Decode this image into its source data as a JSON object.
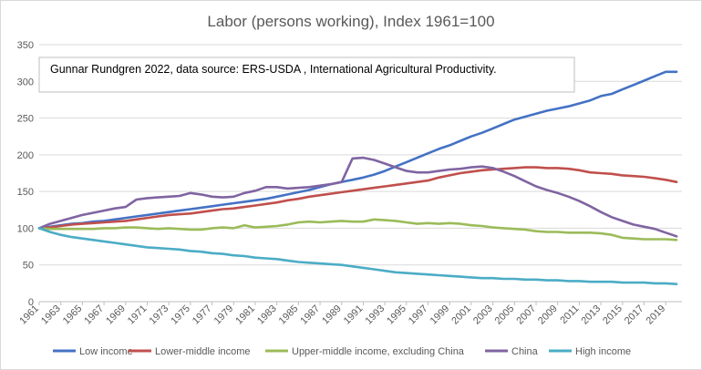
{
  "chart_data": {
    "type": "line",
    "title": "Labor (persons working), Index 1961=100",
    "annotation": "Gunnar Rundgren 2022,  data source: ERS-USDA , International Agricultural Productivity.",
    "xlabel": "",
    "ylabel": "",
    "ylim": [
      0,
      350
    ],
    "yticks": [
      0,
      50,
      100,
      150,
      200,
      250,
      300,
      350
    ],
    "xlim": [
      1961,
      2020
    ],
    "xticks": [
      1961,
      1963,
      1965,
      1967,
      1969,
      1971,
      1973,
      1975,
      1977,
      1979,
      1981,
      1983,
      1985,
      1987,
      1989,
      1991,
      1993,
      1995,
      1997,
      1999,
      2001,
      2003,
      2005,
      2007,
      2009,
      2011,
      2013,
      2015,
      2017,
      2019
    ],
    "grid": "horizontal",
    "legend_position": "bottom",
    "x": [
      1961,
      1962,
      1963,
      1964,
      1965,
      1966,
      1967,
      1968,
      1969,
      1970,
      1971,
      1972,
      1973,
      1974,
      1975,
      1976,
      1977,
      1978,
      1979,
      1980,
      1981,
      1982,
      1983,
      1984,
      1985,
      1986,
      1987,
      1988,
      1989,
      1990,
      1991,
      1992,
      1993,
      1994,
      1995,
      1996,
      1997,
      1998,
      1999,
      2000,
      2001,
      2002,
      2003,
      2004,
      2005,
      2006,
      2007,
      2008,
      2009,
      2010,
      2011,
      2012,
      2013,
      2014,
      2015,
      2016,
      2017,
      2018,
      2019,
      2020
    ],
    "series": [
      {
        "name": "Low income",
        "color": "#4472c4",
        "values": [
          100,
          102,
          104,
          106,
          107,
          109,
          110,
          112,
          114,
          116,
          118,
          120,
          122,
          124,
          126,
          128,
          130,
          132,
          134,
          136,
          138,
          140,
          143,
          146,
          149,
          152,
          156,
          160,
          163,
          166,
          169,
          173,
          178,
          184,
          190,
          196,
          202,
          208,
          213,
          219,
          225,
          230,
          236,
          242,
          248,
          252,
          256,
          260,
          263,
          266,
          270,
          274,
          280,
          283,
          289,
          295,
          301,
          307,
          313,
          313
        ]
      },
      {
        "name": "Lower-middle income",
        "color": "#c0504d",
        "values": [
          100,
          101,
          103,
          105,
          106,
          107,
          108,
          109,
          110,
          112,
          114,
          116,
          118,
          119,
          120,
          122,
          124,
          126,
          127,
          129,
          131,
          133,
          135,
          138,
          140,
          143,
          145,
          147,
          149,
          151,
          153,
          155,
          157,
          159,
          161,
          163,
          165,
          169,
          172,
          175,
          177,
          179,
          180,
          181,
          182,
          183,
          183,
          182,
          182,
          181,
          179,
          176,
          175,
          174,
          172,
          171,
          170,
          168,
          166,
          163
        ]
      },
      {
        "name": "Upper-middle income, excluding China",
        "color": "#9bbb59",
        "values": [
          100,
          99,
          99,
          99,
          99,
          99,
          100,
          100,
          101,
          101,
          100,
          99,
          100,
          99,
          98,
          98,
          100,
          101,
          100,
          104,
          101,
          102,
          103,
          105,
          108,
          109,
          108,
          109,
          110,
          109,
          109,
          112,
          111,
          110,
          108,
          106,
          107,
          106,
          107,
          106,
          104,
          103,
          101,
          100,
          99,
          98,
          96,
          95,
          95,
          94,
          94,
          94,
          93,
          91,
          87,
          86,
          85,
          85,
          85,
          84
        ]
      },
      {
        "name": "China",
        "color": "#8064a2",
        "values": [
          100,
          106,
          110,
          114,
          118,
          121,
          124,
          127,
          129,
          139,
          141,
          142,
          143,
          144,
          148,
          146,
          143,
          142,
          143,
          148,
          151,
          156,
          156,
          154,
          155,
          156,
          158,
          160,
          163,
          195,
          196,
          193,
          188,
          183,
          178,
          176,
          176,
          178,
          180,
          181,
          183,
          184,
          182,
          177,
          171,
          164,
          157,
          152,
          148,
          143,
          137,
          130,
          122,
          115,
          110,
          105,
          102,
          99,
          94,
          89
        ]
      },
      {
        "name": "High income",
        "color": "#4bacc6",
        "values": [
          100,
          95,
          91,
          88,
          86,
          84,
          82,
          80,
          78,
          76,
          74,
          73,
          72,
          71,
          69,
          68,
          66,
          65,
          63,
          62,
          60,
          59,
          58,
          56,
          54,
          53,
          52,
          51,
          50,
          48,
          46,
          44,
          42,
          40,
          39,
          38,
          37,
          36,
          35,
          34,
          33,
          32,
          32,
          31,
          31,
          30,
          30,
          29,
          29,
          28,
          28,
          27,
          27,
          27,
          26,
          26,
          26,
          25,
          25,
          24
        ]
      }
    ]
  }
}
